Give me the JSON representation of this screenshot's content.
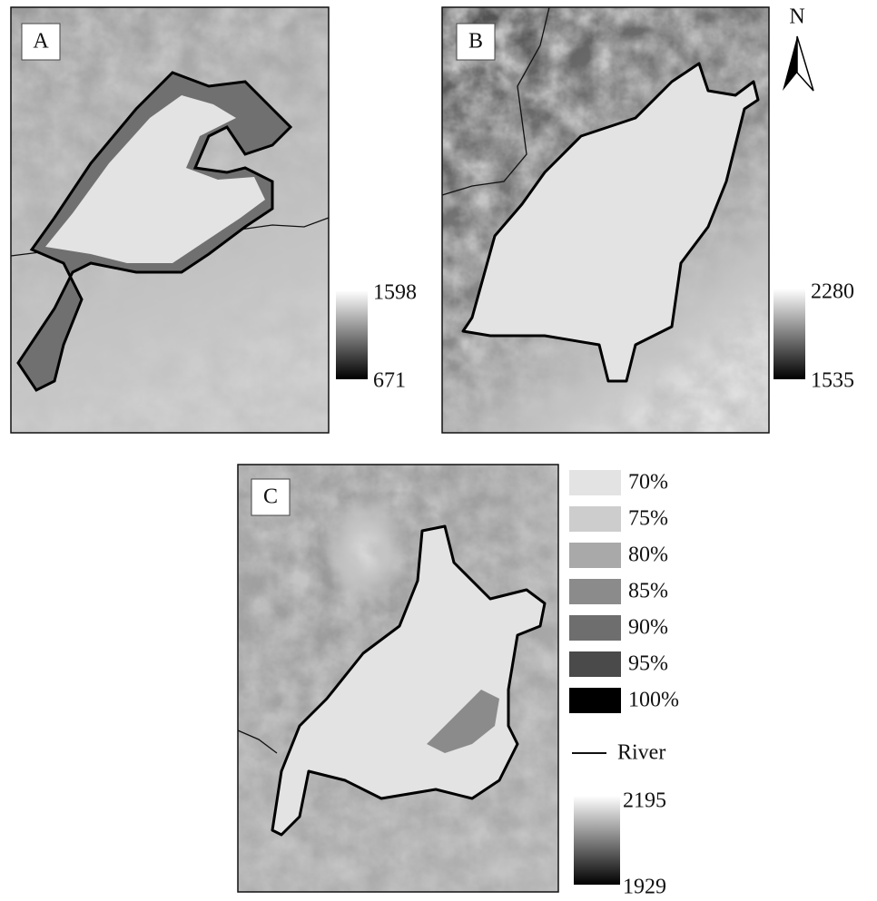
{
  "panels": [
    {
      "label": "A",
      "colorbar": {
        "max": 1598,
        "min": 671
      }
    },
    {
      "label": "B",
      "colorbar": {
        "max": 2280,
        "min": 1535
      }
    },
    {
      "label": "C",
      "colorbar": {
        "max": 2195,
        "min": 1929
      }
    }
  ],
  "north_arrow": "N",
  "legend": {
    "classes": [
      {
        "label": "70%",
        "color": "#e3e3e3"
      },
      {
        "label": "75%",
        "color": "#cdcdcd"
      },
      {
        "label": "80%",
        "color": "#a9a9a9"
      },
      {
        "label": "85%",
        "color": "#8b8b8b"
      },
      {
        "label": "90%",
        "color": "#6e6e6e"
      },
      {
        "label": "95%",
        "color": "#4a4a4a"
      },
      {
        "label": "100%",
        "color": "#000000"
      }
    ],
    "river": "River"
  }
}
